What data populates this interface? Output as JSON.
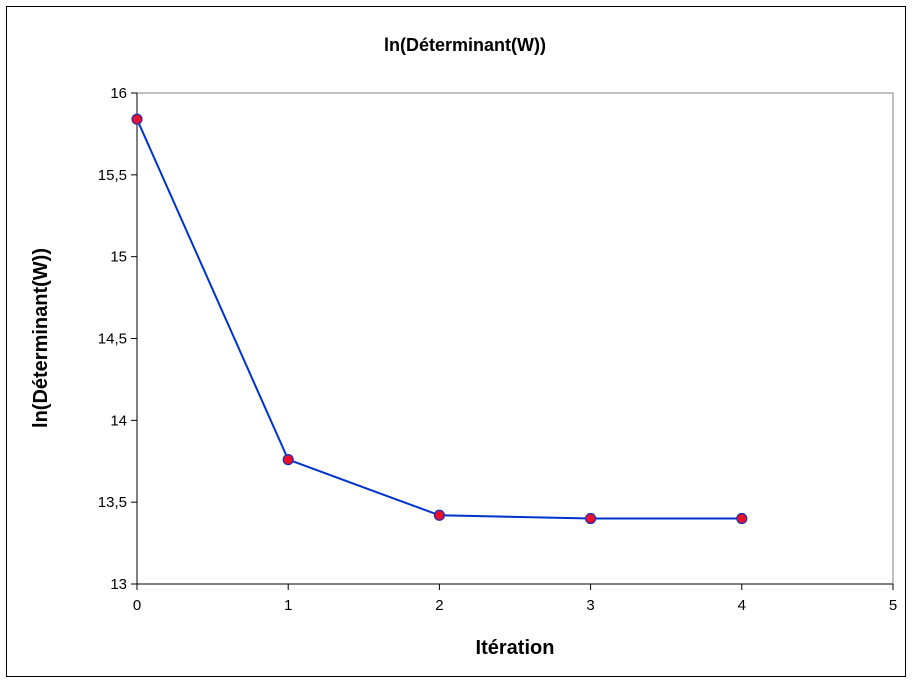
{
  "chart_data": {
    "type": "line",
    "title": "ln(Déterminant(W))",
    "xlabel": "Itération",
    "ylabel": "ln(Déterminant(W))",
    "xlim": [
      0,
      5
    ],
    "ylim": [
      13,
      16
    ],
    "x_ticks": [
      0,
      1,
      2,
      3,
      4,
      5
    ],
    "x_tick_labels": [
      "0",
      "1",
      "2",
      "3",
      "4",
      "5"
    ],
    "y_ticks": [
      13,
      13.5,
      14,
      14.5,
      15,
      15.5,
      16
    ],
    "y_tick_labels": [
      "13",
      "13,5",
      "14",
      "14,5",
      "15",
      "15,5",
      "16"
    ],
    "grid": false,
    "legend": "none",
    "series": [
      {
        "x": [
          0,
          1,
          2,
          3,
          4
        ],
        "y": [
          15.84,
          13.76,
          13.42,
          13.4,
          13.4
        ]
      }
    ],
    "colors": {
      "line": "#0033CC",
      "marker_fill": "#E8102A",
      "marker_edge": "#1F2FB0",
      "plot_border": "#808080"
    }
  }
}
